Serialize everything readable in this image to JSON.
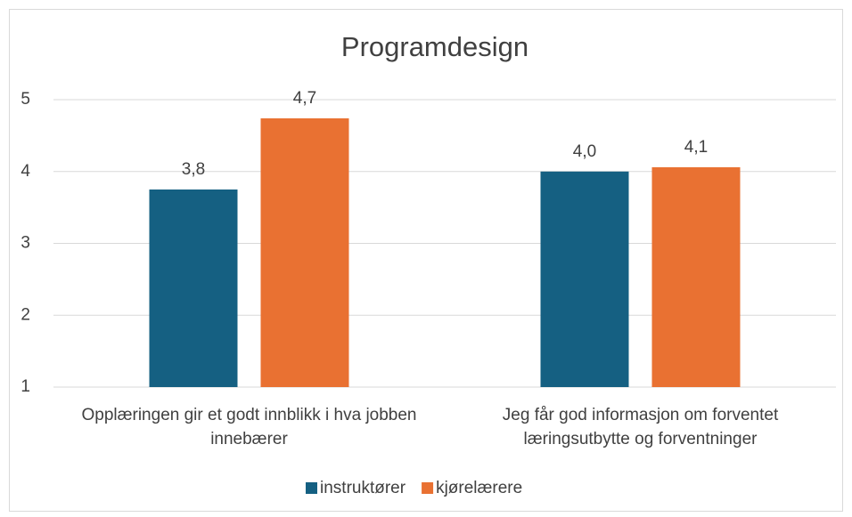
{
  "chart_data": {
    "type": "bar",
    "title": "Programdesign",
    "categories": [
      "Opplæringen gir et godt innblikk i hva jobben innebærer",
      "Jeg får god informasjon om forventet læringsutbytte og forventninger"
    ],
    "series": [
      {
        "name": "instruktører",
        "color": "#156082",
        "values": [
          3.75,
          4.0
        ],
        "value_labels": [
          "3,8",
          "4,0"
        ]
      },
      {
        "name": "kjørelærere",
        "color": "#e97132",
        "values": [
          4.74,
          4.06
        ],
        "value_labels": [
          "4,7",
          "4,1"
        ]
      }
    ],
    "ylim": [
      1,
      5
    ],
    "yticks": [
      1,
      2,
      3,
      4,
      5
    ],
    "grid": true,
    "legend": "bottom"
  }
}
